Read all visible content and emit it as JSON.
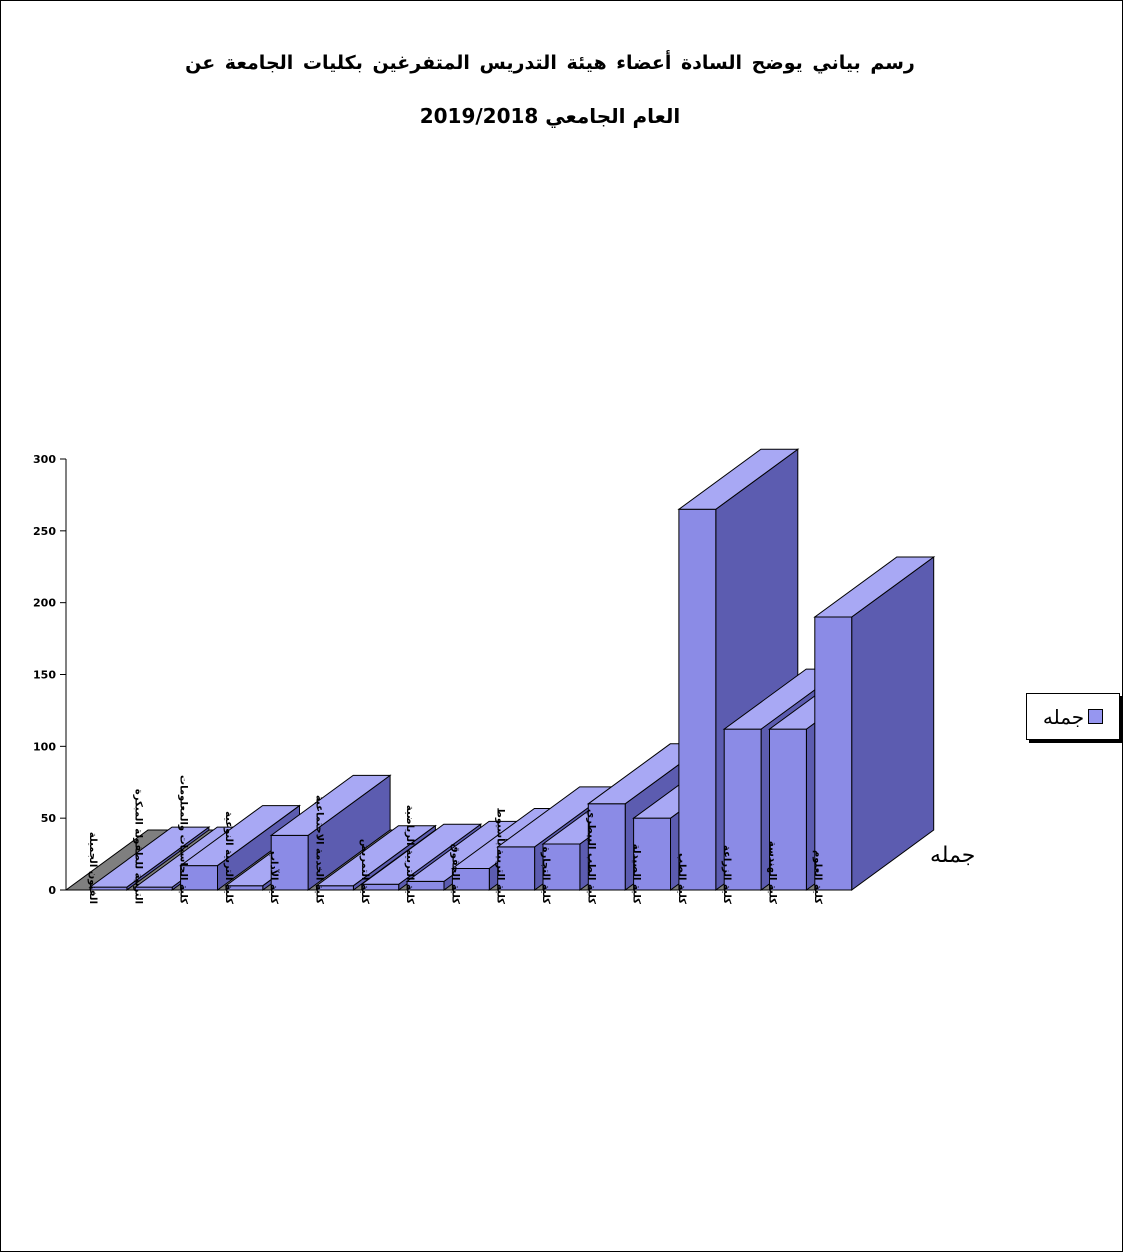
{
  "colors": {
    "bar_front": "#8b8be6",
    "bar_side": "#5c5cb0",
    "bar_top": "#a8a8f4",
    "floor": "#7f7f7f",
    "legend_swatch": "#9696f0"
  },
  "chart_data": {
    "type": "bar",
    "title": "رسم بياني يوضح السادة أعضاء هيئة التدريس المتفرغين بكليات الجامعة عن",
    "subtitle": "العام الجامعي 2019/2018",
    "categories": [
      "الفنون الجميلة",
      "التربية للطفولة المبكرة",
      "كلية الحاسبات والمعلومات",
      "كلية التربية النوعية",
      "كلية الآداب",
      "كلية الخدمة الاجتماعية",
      "كلية التمريض",
      "كلية التربية الرياضية",
      "كلية الحقوق",
      "كلية التربية بأسيوط",
      "كلية التجارة",
      "كلية الطب البيطري",
      "كلية الصيدلة",
      "كلية الطب",
      "كلية الزراعة",
      "كلية الهندسة",
      "كلية العلوم"
    ],
    "series": [
      {
        "name": "جمله",
        "values": [
          2,
          2,
          17,
          3,
          38,
          3,
          4,
          6,
          15,
          30,
          32,
          60,
          50,
          265,
          112,
          112,
          190
        ]
      }
    ],
    "y_ticks": [
      0,
      50,
      100,
      150,
      200,
      250,
      300
    ],
    "ylim": [
      0,
      300
    ],
    "legend": "right",
    "depth_axis_label": "جمله",
    "grid": false
  }
}
